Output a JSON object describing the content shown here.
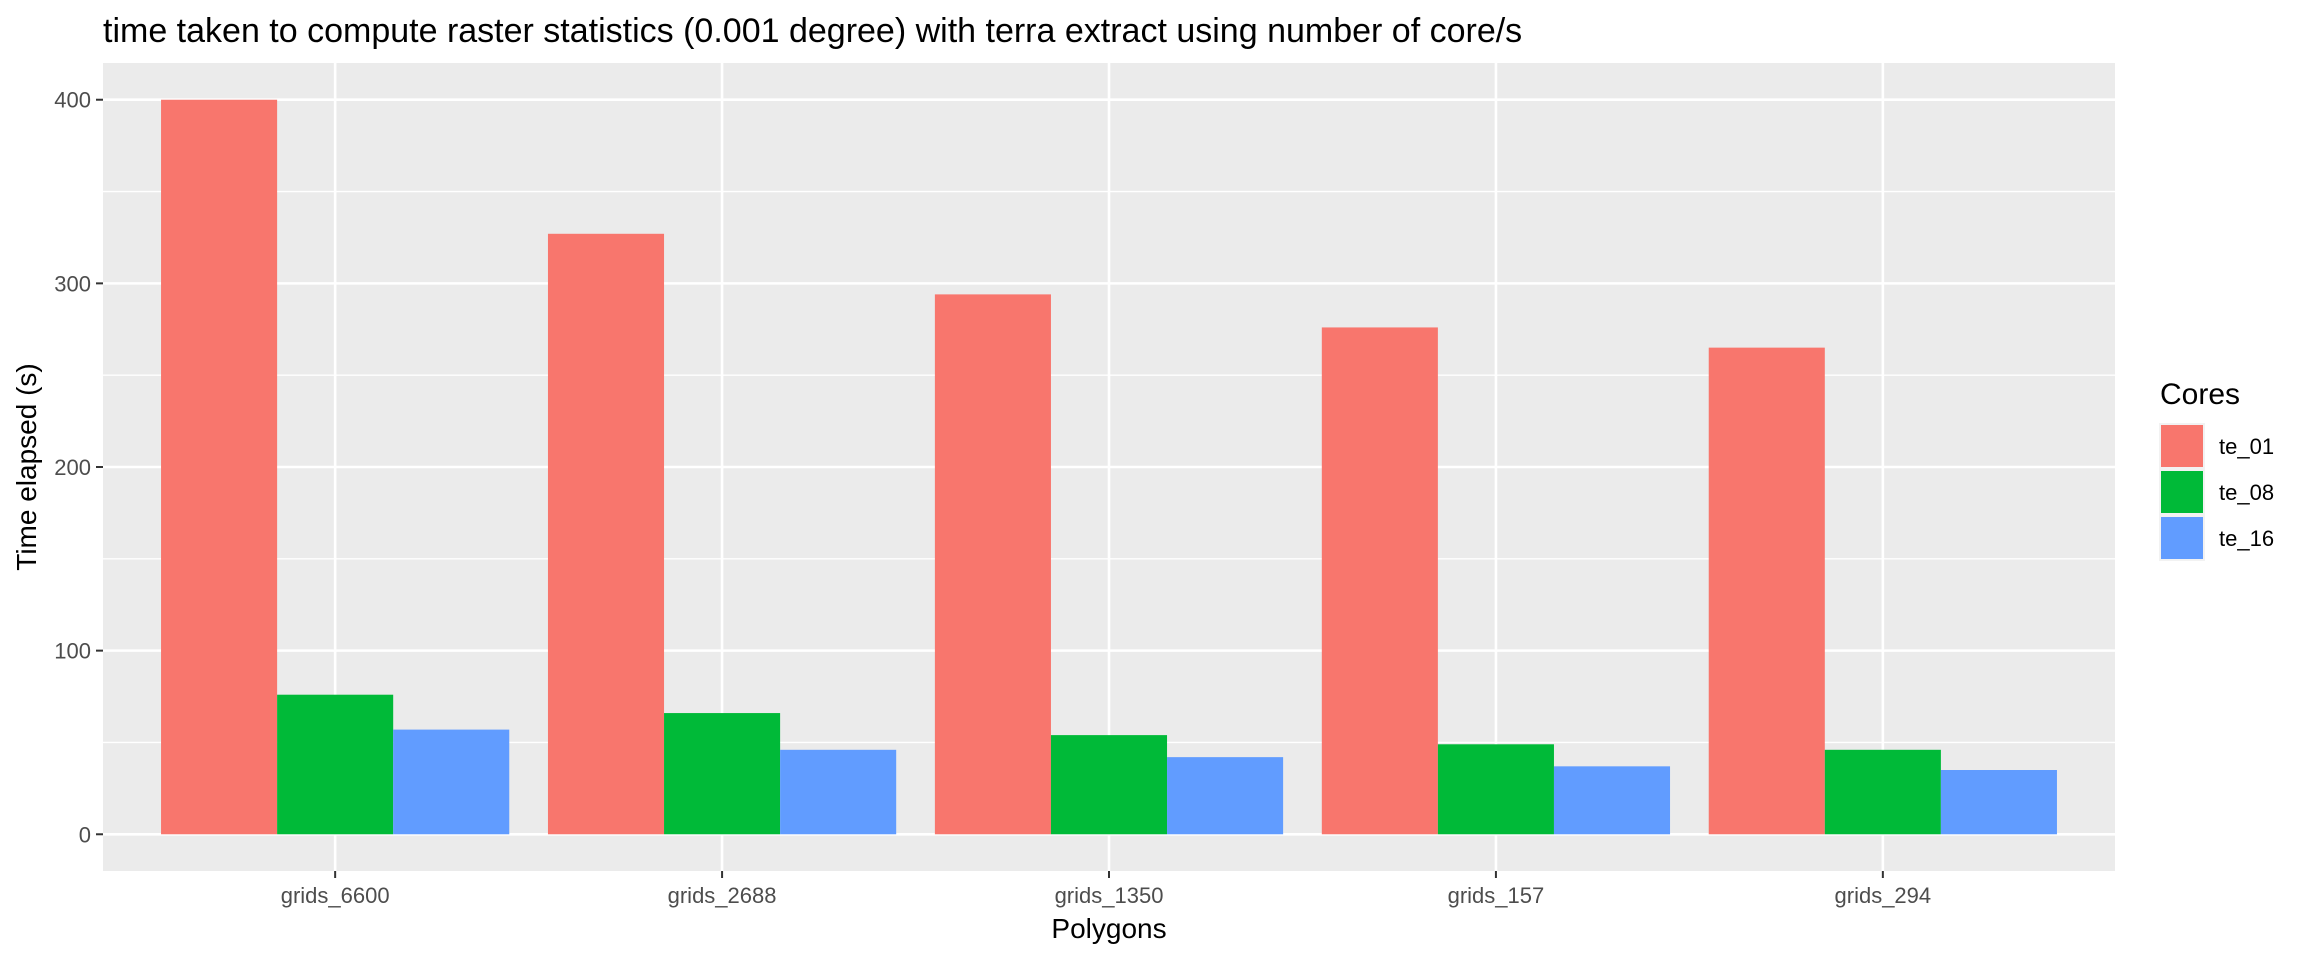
{
  "chart_data": {
    "type": "bar",
    "title": "time taken to compute raster statistics (0.001 degree) with terra extract using number of core/s",
    "xlabel": "Polygons",
    "ylabel": "Time elapsed (s)",
    "categories": [
      "grids_6600",
      "grids_2688",
      "grids_1350",
      "grids_157",
      "grids_294"
    ],
    "series": [
      {
        "name": "te_01",
        "color": "#F8766D",
        "values": [
          400,
          327,
          294,
          276,
          265
        ]
      },
      {
        "name": "te_08",
        "color": "#00BA38",
        "values": [
          76,
          66,
          54,
          49,
          46
        ]
      },
      {
        "name": "te_16",
        "color": "#619CFF",
        "values": [
          57,
          46,
          42,
          37,
          35
        ]
      }
    ],
    "ylim": [
      -20,
      420
    ],
    "yticks": [
      0,
      100,
      200,
      300,
      400
    ],
    "grid": true,
    "legend": {
      "title": "Cores",
      "position": "right"
    },
    "panel_background": "#EBEBEB",
    "grid_color": "#FFFFFF"
  }
}
